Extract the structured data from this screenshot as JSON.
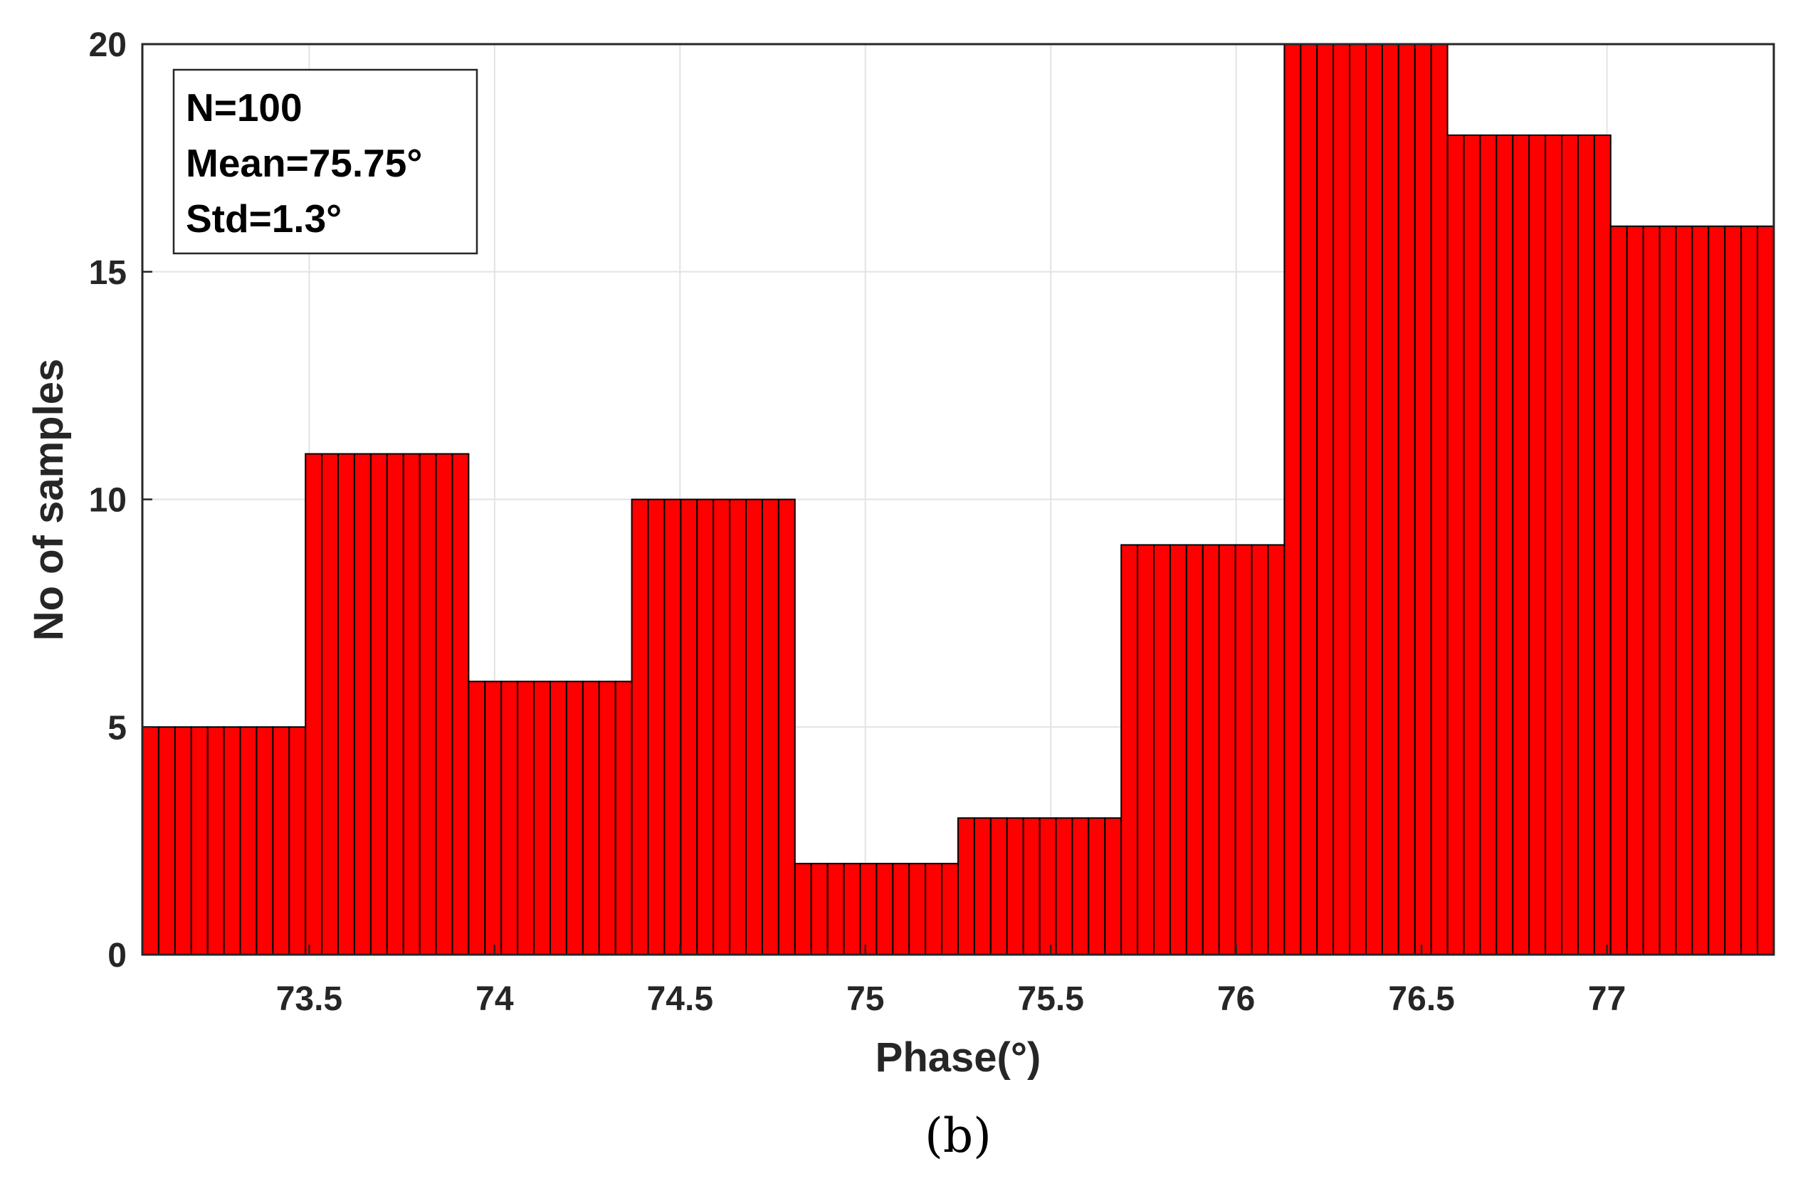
{
  "chart_data": {
    "type": "bar",
    "xlabel": "Phase(°)",
    "ylabel": "No of samples",
    "caption": "(b)",
    "xlim": [
      73.05,
      77.45
    ],
    "ylim": [
      0,
      20
    ],
    "xticks": [
      73.5,
      74,
      74.5,
      75,
      75.5,
      76,
      76.5,
      77
    ],
    "yticks": [
      0,
      5,
      10,
      15,
      20
    ],
    "grid": true,
    "bar_color": "#ff0000",
    "bar_edge_color": "#000000",
    "annotation": [
      "N=100",
      "Mean=75.75°",
      "Std=1.3°"
    ],
    "annotation_position": "top-left",
    "bins": [
      {
        "start": 73.05,
        "end": 73.49,
        "value": 5
      },
      {
        "start": 73.49,
        "end": 73.93,
        "value": 11
      },
      {
        "start": 73.93,
        "end": 74.37,
        "value": 6
      },
      {
        "start": 74.37,
        "end": 74.81,
        "value": 10
      },
      {
        "start": 74.81,
        "end": 75.25,
        "value": 2
      },
      {
        "start": 75.25,
        "end": 75.69,
        "value": 3
      },
      {
        "start": 75.69,
        "end": 76.13,
        "value": 9
      },
      {
        "start": 76.13,
        "end": 76.57,
        "value": 20
      },
      {
        "start": 76.57,
        "end": 77.01,
        "value": 18
      },
      {
        "start": 77.01,
        "end": 77.45,
        "value": 16
      }
    ]
  }
}
